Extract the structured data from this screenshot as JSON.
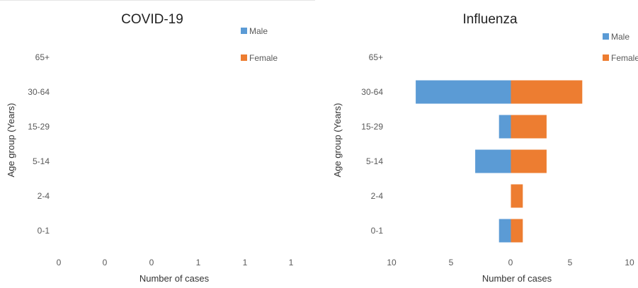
{
  "chart_data": [
    {
      "type": "bar",
      "orientation": "horizontal",
      "title": "COVID-19",
      "xlabel": "Number of cases",
      "ylabel": "Age group (Years)",
      "categories": [
        "0-1",
        "2-4",
        "5-14",
        "15-29",
        "30-64",
        "65+"
      ],
      "x_tick_labels": [
        "0",
        "0",
        "0",
        "1",
        "1",
        "1"
      ],
      "legend_position": "top-right",
      "grid": false,
      "series": [
        {
          "name": "Male",
          "color": "#5b9bd5",
          "values": [
            0,
            0,
            0,
            0,
            0,
            0
          ]
        },
        {
          "name": "Female",
          "color": "#ed7d31",
          "values": [
            0,
            0,
            0,
            0,
            0,
            0
          ]
        }
      ]
    },
    {
      "type": "bar",
      "orientation": "horizontal",
      "title": "Influenza",
      "xlabel": "Number of cases",
      "ylabel": "Age group (Years)",
      "categories": [
        "0-1",
        "2-4",
        "5-14",
        "15-29",
        "30-64",
        "65+"
      ],
      "x_tick_labels": [
        "10",
        "5",
        "0",
        "5",
        "10"
      ],
      "xlim": [
        -10,
        10
      ],
      "legend_position": "top-right",
      "grid": false,
      "series": [
        {
          "name": "Male",
          "color": "#5b9bd5",
          "values": [
            -1,
            0,
            -3,
            -1,
            -8,
            0
          ]
        },
        {
          "name": "Female",
          "color": "#ed7d31",
          "values": [
            1,
            1,
            3,
            3,
            6,
            0
          ]
        }
      ]
    }
  ]
}
